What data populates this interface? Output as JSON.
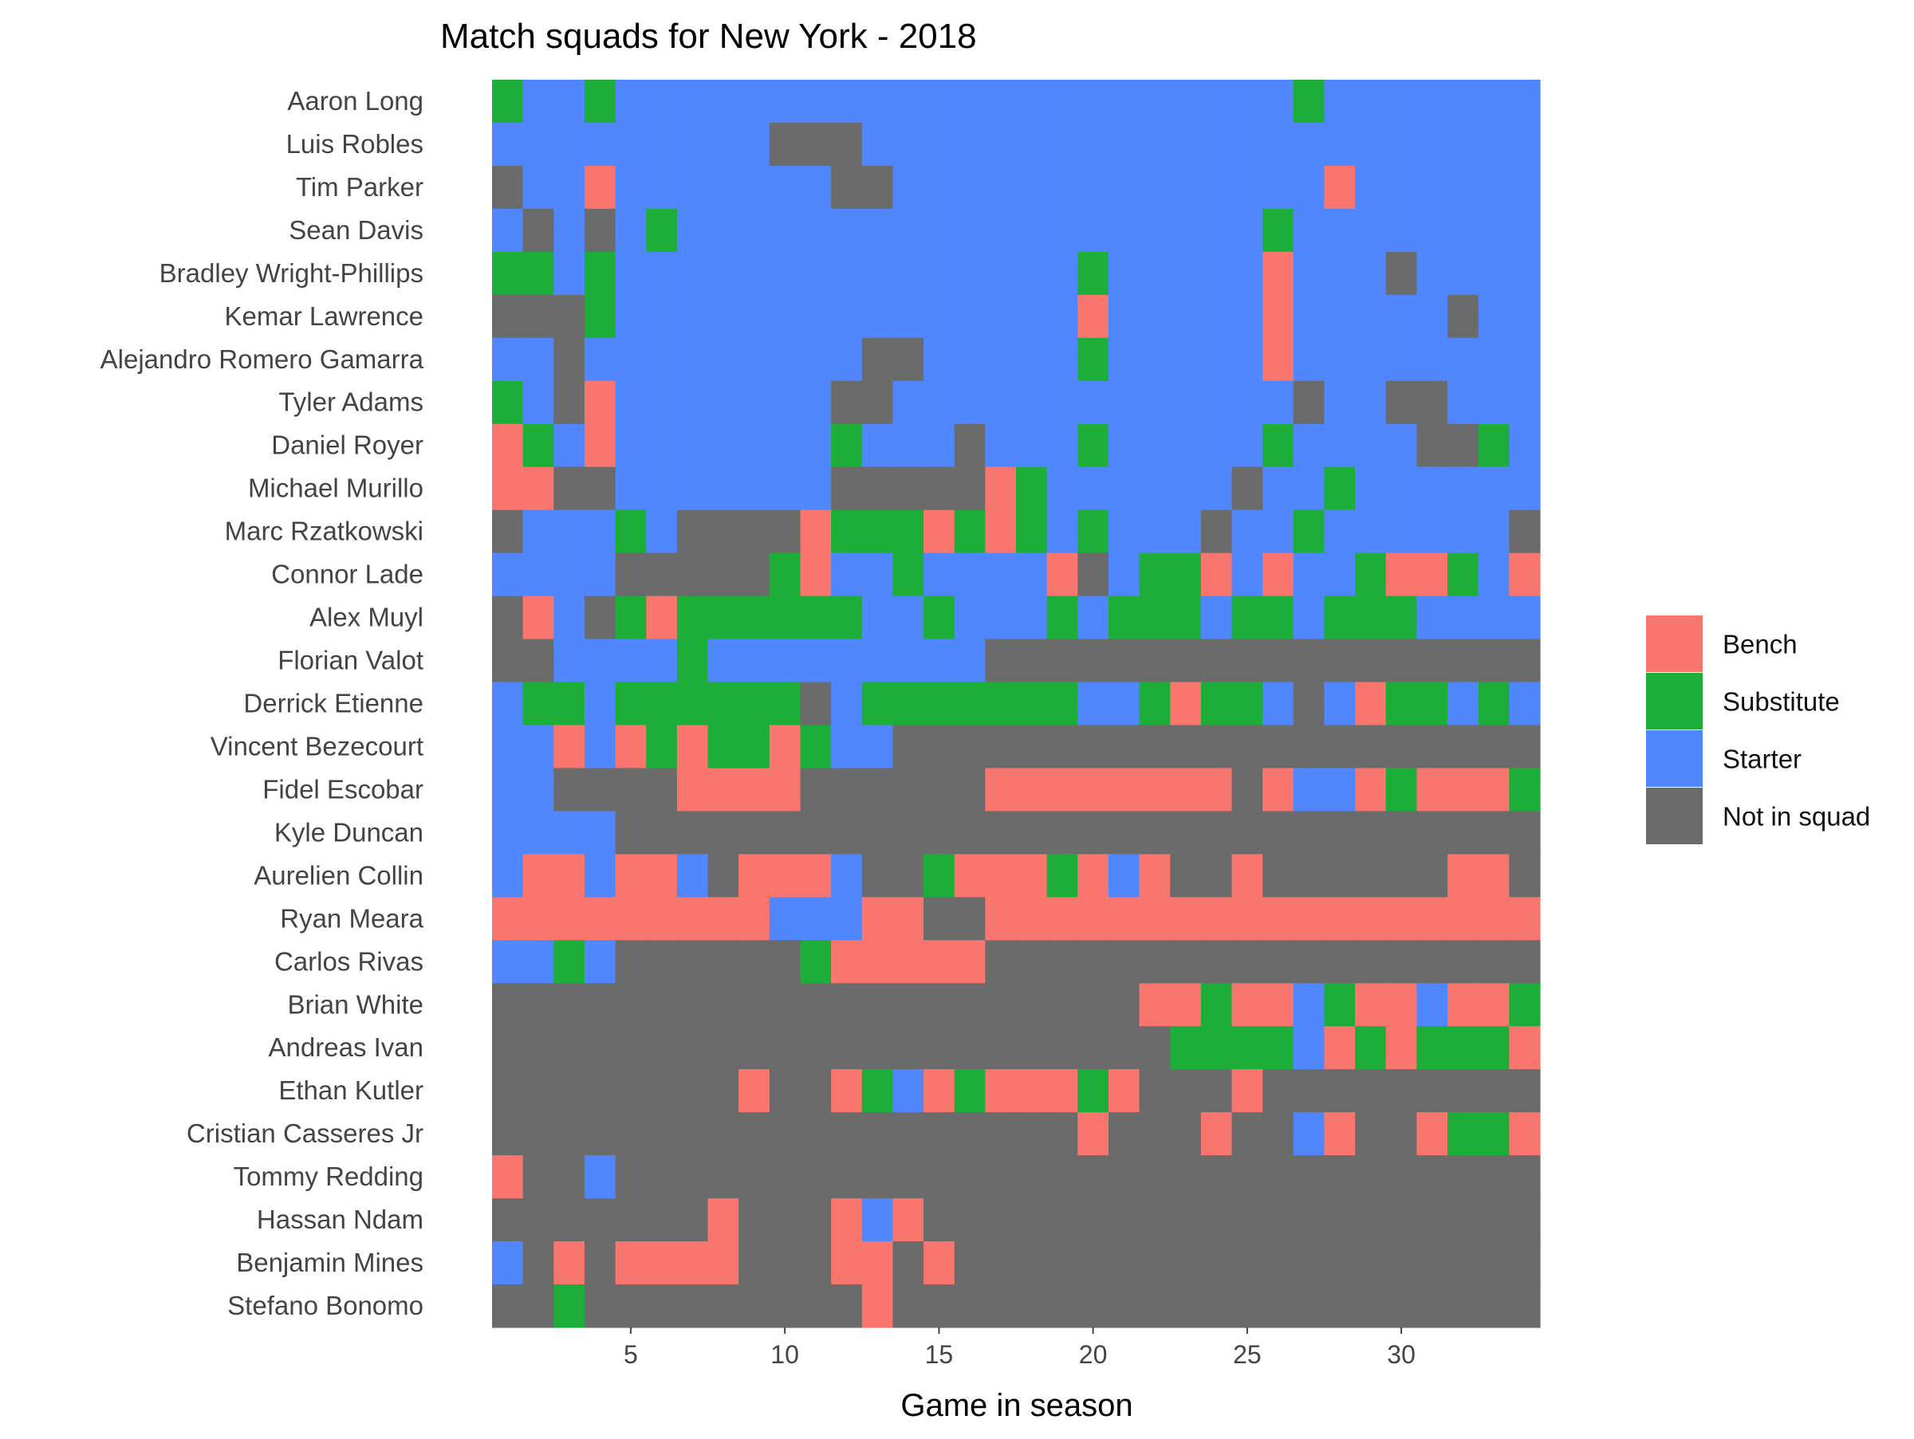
{
  "chart_data": {
    "type": "heatmap",
    "title": "Match squads for New York - 2018",
    "xlabel": "Game in season",
    "ylabel": "",
    "x_ticks": [
      5,
      10,
      15,
      20,
      25,
      30
    ],
    "xlim": [
      0.5,
      34.5
    ],
    "grid": false,
    "legend_position": "right",
    "legend": [
      {
        "key": "B",
        "label": "Bench",
        "color": "#F8766D"
      },
      {
        "key": "U",
        "label": "Substitute",
        "color": "#1CAE38"
      },
      {
        "key": "S",
        "label": "Starter",
        "color": "#5087FF"
      },
      {
        "key": "N",
        "label": "Not in squad",
        "color": "#6B6B6B"
      }
    ],
    "players": [
      {
        "name": "Aaron Long",
        "status": "USSUSSSSSSSSSSSSSSSSSSSSSSUSSSSSSS"
      },
      {
        "name": "Luis Robles",
        "status": "SSSSSSSSSNNNSSSSSSSSSSSSSSSSSSSSSS"
      },
      {
        "name": "Tim Parker",
        "status": "NSSBSSSSSSSNNSSSSSSSSSSSSSSBSSSSSS"
      },
      {
        "name": "Sean Davis",
        "status": "SNSNSUSSSSSSSSSSSSSSSSSSSUSSSSSSSS"
      },
      {
        "name": "Bradley Wright-Phillips",
        "status": "UUSUSSSSSSSSSSSSSSSUSSSSSBSSSNSSSS"
      },
      {
        "name": "Kemar Lawrence",
        "status": "NNNUSSSSSSSSSSSSSSSBSSSSSBSSSSSNSS"
      },
      {
        "name": "Alejandro Romero Gamarra",
        "status": "SSNSSSSSSSSSNNSSSSSUSSSSSBSSSSSSSS"
      },
      {
        "name": "Tyler Adams",
        "status": "USNBSSSSSSSNNSSSSSSSSSSSSSNSSNNSSS"
      },
      {
        "name": "Daniel Royer",
        "status": "BUSBSSSSSSSUSSSNSSSUSSSSSUSSSSNNUS"
      },
      {
        "name": "Michael Murillo",
        "status": "BBNNSSSSSSSNNNNNBUSSSSSSNSSUSSSSSS"
      },
      {
        "name": "Marc Rzatkowski",
        "status": "NSSSUSNNNNBUUUBUBUSUSSSNSSUSSSSSSN"
      },
      {
        "name": "Connor Lade",
        "status": "SSSSNNNNNUBSSUSSSSBNSUUBSBSSUBBUSB"
      },
      {
        "name": "Alex Muyl",
        "status": "NBSNUBUUUUUUSSUSSSUSUUUSUUSUUUSSSS"
      },
      {
        "name": "Florian Valot",
        "status": "NNSSSSUSSSSSSSSSNNNNNNNNNNNNNNNNNN"
      },
      {
        "name": "Derrick Etienne",
        "status": "SUUSUUUUUUNSUUUUUUUSSUBUUSNSBUUSUS"
      },
      {
        "name": "Vincent Bezecourt",
        "status": "SSBSBUBUUBUSSNNNNNNNNNNNNNNNNNNNNN"
      },
      {
        "name": "Fidel Escobar",
        "status": "SSNNNNBBBBNNNNNNBBBBBBBBNBSSBUBBBU"
      },
      {
        "name": "Kyle Duncan",
        "status": "SSSSNNNNNNNNNNNNNNNNNNNNNNNNNNNNNN"
      },
      {
        "name": "Aurelien Collin",
        "status": "SBBSBBSNBBBSNNUBBBUBSBNNBNNNNNNBBN"
      },
      {
        "name": "Ryan Meara",
        "status": "BBBBBBBBBSSSBBNNBBBBBBBBBBBBBBBBBB"
      },
      {
        "name": "Carlos Rivas",
        "status": "SSUSNNNNNNUBBBBBNNNNNNNNNNNNNNNNNN"
      },
      {
        "name": "Brian White",
        "status": "NNNNNNNNNNNNNNNNNNNNNBBUBBSUBBSBBU"
      },
      {
        "name": "Andreas Ivan",
        "status": "NNNNNNNNNNNNNNNNNNNNNNUUUUSBUBUUUB"
      },
      {
        "name": "Ethan Kutler",
        "status": "NNNNNNNNBNNBUSBUBBBUBNNNBNNNNNNNNN"
      },
      {
        "name": "Cristian Casseres Jr",
        "status": "NNNNNNNNNNNNNNNNNNNBNNNBNNSBNNBUUB"
      },
      {
        "name": "Tommy Redding",
        "status": "BNNSNNNNNNNNNNNNNNNNNNNNNNNNNNNNNN"
      },
      {
        "name": "Hassan Ndam",
        "status": "NNNNNNNBNNNBSBNNNNNNNNNNNNNNNNNNNN"
      },
      {
        "name": "Benjamin Mines",
        "status": "SNBNBBBBNNNBBNBNNNNNNNNNNNNNNNNNNN"
      },
      {
        "name": "Stefano Bonomo",
        "status": "NNUNNNNNNNNNBNNNNNNNNNNNNNNNNNNNNN"
      }
    ]
  }
}
